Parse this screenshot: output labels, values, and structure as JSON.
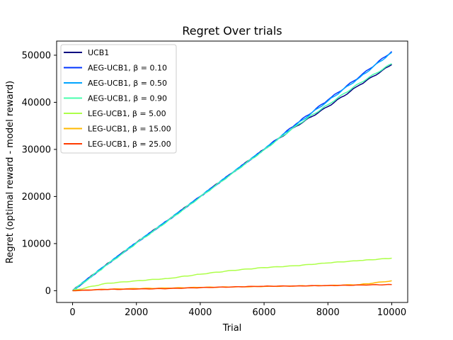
{
  "chart_data": {
    "type": "line",
    "title": "Regret Over trials",
    "xlabel": "Trial",
    "ylabel": "Regret (optimal reward - model reward)",
    "xlim": [
      -500,
      10500
    ],
    "ylim": [
      -2500,
      53000
    ],
    "xticks": [
      0,
      2000,
      4000,
      6000,
      8000,
      10000
    ],
    "yticks": [
      0,
      10000,
      20000,
      30000,
      40000,
      50000
    ],
    "grid": false,
    "legend_position": "top-left",
    "series": [
      {
        "name": "UCB1",
        "color": "#000080",
        "x": [
          0,
          1000,
          2000,
          3000,
          4000,
          5000,
          6000,
          7000,
          8000,
          9000,
          10000
        ],
        "values": [
          0,
          5200,
          10200,
          15000,
          20000,
          25000,
          30000,
          34900,
          39100,
          43700,
          48000
        ]
      },
      {
        "name": "AEG-UCB1, β = 0.10",
        "color": "#0034ff",
        "x": [
          0,
          1000,
          2000,
          3000,
          4000,
          5000,
          6000,
          7000,
          8000,
          9000,
          10000
        ],
        "values": [
          0,
          5200,
          10200,
          15000,
          20000,
          25000,
          30000,
          35400,
          40500,
          45500,
          50800
        ]
      },
      {
        "name": "AEG-UCB1, β = 0.50",
        "color": "#00a4ff",
        "x": [
          0,
          1000,
          2000,
          3000,
          4000,
          5000,
          6000,
          7000,
          8000,
          9000,
          10000
        ],
        "values": [
          0,
          5200,
          10200,
          15000,
          20000,
          25000,
          30000,
          35200,
          40300,
          45300,
          50600
        ]
      },
      {
        "name": "AEG-UCB1, β = 0.90",
        "color": "#49ffad",
        "x": [
          0,
          1000,
          2000,
          3000,
          4000,
          5000,
          6000,
          7000,
          8000,
          9000,
          10000
        ],
        "values": [
          0,
          5100,
          10100,
          14900,
          19900,
          24900,
          29900,
          35000,
          39500,
          44100,
          48200
        ]
      },
      {
        "name": "LEG-UCB1, β = 5.00",
        "color": "#adff49",
        "x": [
          0,
          1000,
          2000,
          3000,
          4000,
          5000,
          6000,
          7000,
          8000,
          9000,
          10000
        ],
        "values": [
          0,
          1500,
          2100,
          2600,
          3500,
          4300,
          4900,
          5300,
          5900,
          6400,
          6900
        ]
      },
      {
        "name": "LEG-UCB1, β = 15.00",
        "color": "#ffb900",
        "x": [
          0,
          1000,
          2000,
          3000,
          4000,
          5000,
          6000,
          7000,
          8000,
          9000,
          10000
        ],
        "values": [
          0,
          300,
          450,
          550,
          700,
          800,
          900,
          1000,
          1100,
          1300,
          2100
        ]
      },
      {
        "name": "LEG-UCB1, β = 25.00",
        "color": "#ff3b00",
        "x": [
          0,
          1000,
          2000,
          3000,
          4000,
          5000,
          6000,
          7000,
          8000,
          9000,
          10000
        ],
        "values": [
          0,
          250,
          350,
          450,
          650,
          800,
          950,
          1000,
          1100,
          1200,
          1300
        ]
      }
    ]
  }
}
